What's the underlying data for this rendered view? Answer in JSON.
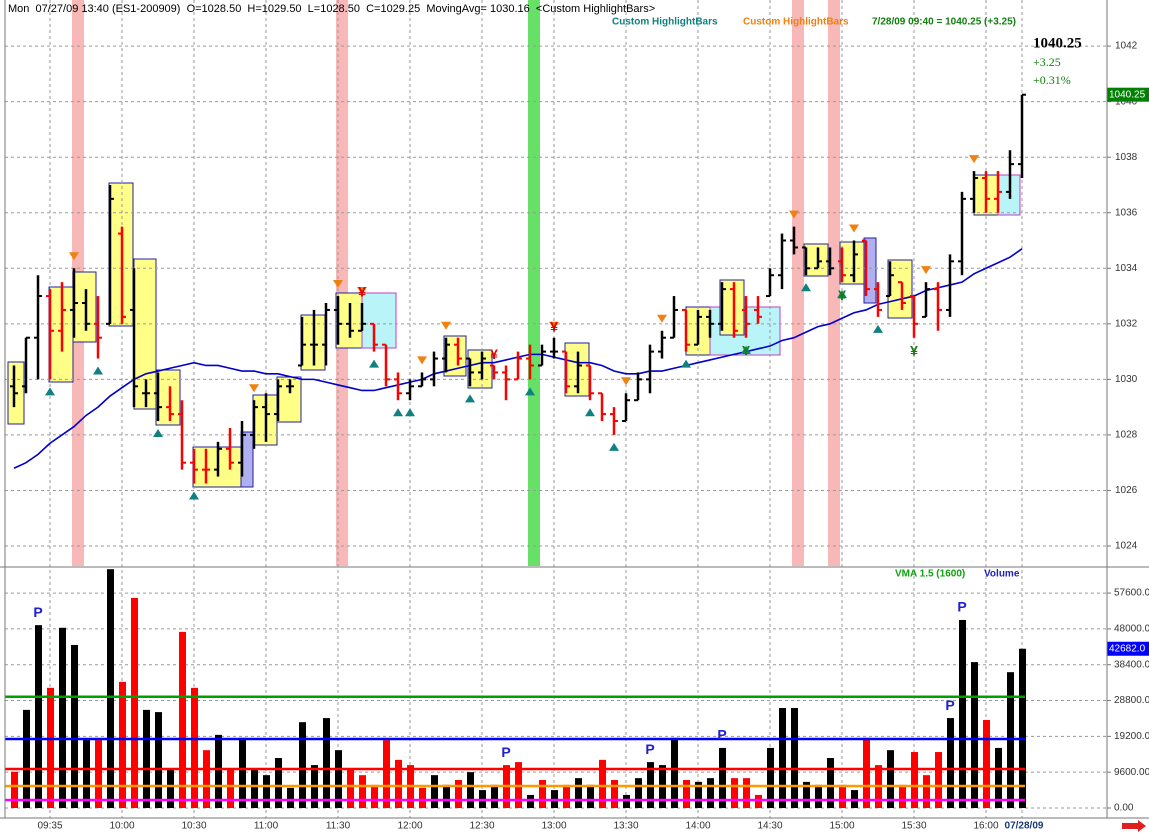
{
  "header": "Mon  07/27/09 13:40 (ES1-200909)  O=1028.50  H=1029.50  L=1028.50  C=1029.25  MovingAvg= 1030.16  <Custom HighlightBars>",
  "indicators": [
    "Custom HighlightBars",
    "Custom HighlightBars",
    "7/28/09 09:40 = 1040.25 (+3.25)"
  ],
  "quote": {
    "change": "+3.25",
    "percent": "+0.31%"
  },
  "chart_data": [
    {
      "type": "ohlc",
      "ylim": [
        1023.28,
        1043.66
      ],
      "yticks": [
        1024,
        1026,
        1028,
        1030,
        1032,
        1034,
        1036,
        1038,
        1040,
        1042
      ],
      "grid": true,
      "last_color": "#008000",
      "open": [
        1029.75,
        1029.75,
        1031.5,
        1033,
        1031.75,
        1032.5,
        1032.75,
        1032,
        1032,
        1035.25,
        1032.5,
        1029.5,
        1029.5,
        1029,
        1028.75,
        1027,
        1026.75,
        1026.75,
        1027.5,
        1027,
        1028,
        1029,
        1028.75,
        1029.75,
        1030.5,
        1031.25,
        1031.25,
        1032.5,
        1032,
        1031.75,
        1032,
        1031.25,
        1030,
        1029.5,
        1029.75,
        1030,
        1030.75,
        1031.25,
        1030.75,
        1030.25,
        1030.5,
        1030.25,
        1030,
        1030.75,
        1030.5,
        1031,
        1031,
        1029.75,
        1030.5,
        1029.5,
        1028.75,
        1028.5,
        1029.25,
        1030,
        1031,
        1031.5,
        1032.5,
        1031.25,
        1032.25,
        1032,
        1033.25,
        1032.5,
        1032.5,
        1033,
        1033.75,
        1035,
        1034.75,
        1034,
        1034.25,
        1034.25,
        1033.75,
        1035,
        1033.25,
        1033,
        1033.5,
        1033,
        1032.25,
        1033.25,
        1032.5,
        1034.25,
        1036.5,
        1037.25,
        1036.5,
        1036.75,
        1037.75
      ],
      "high": [
        1030.5,
        1031.5,
        1033.75,
        1033.25,
        1033.5,
        1034,
        1033.25,
        1033,
        1037,
        1035.5,
        1034,
        1030,
        1030.25,
        1029.75,
        1029.25,
        1027.5,
        1027.5,
        1027.75,
        1028.25,
        1028.5,
        1029.25,
        1029.5,
        1030,
        1030,
        1032.25,
        1032.5,
        1032.75,
        1033,
        1032.75,
        1032.75,
        1032,
        1031.25,
        1030.25,
        1030,
        1030.25,
        1031,
        1031.5,
        1031.5,
        1030.75,
        1031,
        1030.5,
        1030.5,
        1031,
        1031.25,
        1031.25,
        1031.5,
        1031,
        1031,
        1030.5,
        1029.5,
        1029,
        1029.5,
        1030.25,
        1031.25,
        1031.75,
        1033,
        1032.5,
        1032.5,
        1032.5,
        1033.5,
        1033.5,
        1033,
        1033,
        1034,
        1035.25,
        1035.5,
        1034.75,
        1034.75,
        1034.75,
        1034.75,
        1035,
        1035,
        1033.5,
        1034.25,
        1033.5,
        1033,
        1033.5,
        1033.5,
        1034.5,
        1036.75,
        1037.5,
        1037.5,
        1037.5,
        1038.25,
        1040.25
      ],
      "low": [
        1029,
        1029.5,
        1030,
        1030,
        1031,
        1031.5,
        1031.75,
        1030.75,
        1032,
        1032,
        1029,
        1029,
        1028.5,
        1028.5,
        1026.75,
        1026.25,
        1026.25,
        1026.5,
        1026.75,
        1026.5,
        1027.5,
        1027.75,
        1028.5,
        1029.5,
        1030.5,
        1030.5,
        1030.5,
        1031.25,
        1031.5,
        1031.75,
        1031,
        1029.75,
        1029.25,
        1029.25,
        1029.75,
        1029.75,
        1030.25,
        1030.5,
        1029.75,
        1030,
        1030,
        1029.25,
        1030,
        1030,
        1030.5,
        1030.75,
        1029.5,
        1029.5,
        1029.25,
        1028.5,
        1028,
        1028.5,
        1029.25,
        1029.5,
        1030.75,
        1031.5,
        1031,
        1031.25,
        1031.5,
        1031.75,
        1031.5,
        1031.5,
        1032,
        1033,
        1033.25,
        1034.5,
        1033.75,
        1034,
        1033.75,
        1033.5,
        1033.5,
        1033,
        1032.25,
        1033,
        1032.5,
        1031.5,
        1032.25,
        1031.75,
        1032.25,
        1033.75,
        1036,
        1036,
        1036,
        1036.5,
        1037.25
      ],
      "close": [
        1029.5,
        1031.5,
        1033,
        1031.75,
        1032.5,
        1032.75,
        1032,
        1031.5,
        1036.5,
        1032.25,
        1029.75,
        1029.5,
        1029,
        1028.75,
        1027,
        1026.75,
        1026.75,
        1027.5,
        1027,
        1028,
        1029,
        1028.75,
        1029.75,
        1029.75,
        1031.25,
        1031.25,
        1032.5,
        1032,
        1031.75,
        1032,
        1031.25,
        1030,
        1029.5,
        1029.75,
        1030,
        1030.75,
        1031.25,
        1030.75,
        1030.25,
        1030.75,
        1030.25,
        1030,
        1030.75,
        1030.5,
        1031,
        1031,
        1029.75,
        1030.5,
        1029.5,
        1028.75,
        1028.5,
        1029.25,
        1030,
        1031,
        1031.5,
        1032.5,
        1031.25,
        1032.25,
        1032,
        1033.25,
        1031.75,
        1032,
        1032.25,
        1033.75,
        1035,
        1034.75,
        1034,
        1034.25,
        1034,
        1033.75,
        1034.5,
        1033.25,
        1032.5,
        1033.75,
        1032.75,
        1032,
        1033.25,
        1032.5,
        1034.25,
        1036.5,
        1037.25,
        1036.5,
        1036.75,
        1037.75,
        1040.25
      ],
      "colors": [
        "#000",
        "#000",
        "#000",
        "#f00",
        "#f00",
        "#000",
        "#000",
        "#f00",
        "#000",
        "#f00",
        "#000",
        "#000",
        "#000",
        "#f00",
        "#f00",
        "#f00",
        "#f00",
        "#000",
        "#f00",
        "#000",
        "#000",
        "#000",
        "#000",
        "#000",
        "#000",
        "#000",
        "#000",
        "#000",
        "#000",
        "#000",
        "#f00",
        "#f00",
        "#f00",
        "#000",
        "#000",
        "#000",
        "#000",
        "#f00",
        "#000",
        "#000",
        "#f00",
        "#f00",
        "#f00",
        "#f00",
        "#000",
        "#000",
        "#f00",
        "#000",
        "#f00",
        "#f00",
        "#f00",
        "#000",
        "#000",
        "#000",
        "#000",
        "#000",
        "#f00",
        "#000",
        "#000",
        "#000",
        "#f00",
        "#f00",
        "#f00",
        "#000",
        "#000",
        "#000",
        "#000",
        "#000",
        "#000",
        "#f00",
        "#000",
        "#f00",
        "#f00",
        "#000",
        "#f00",
        "#f00",
        "#000",
        "#f00",
        "#000",
        "#000",
        "#000",
        "#f00",
        "#f00",
        "#000",
        "#000"
      ],
      "moving_average": {
        "color": "#0000cc",
        "values": [
          1026.8,
          1027.0,
          1027.3,
          1027.7,
          1028.0,
          1028.3,
          1028.7,
          1029.0,
          1029.4,
          1029.7,
          1030.0,
          1030.2,
          1030.3,
          1030.4,
          1030.5,
          1030.6,
          1030.5,
          1030.5,
          1030.4,
          1030.3,
          1030.3,
          1030.2,
          1030.2,
          1030.1,
          1030.0,
          1030.0,
          1029.9,
          1029.8,
          1029.7,
          1029.6,
          1029.6,
          1029.7,
          1029.8,
          1029.9,
          1030.0,
          1030.2,
          1030.3,
          1030.4,
          1030.5,
          1030.6,
          1030.6,
          1030.7,
          1030.8,
          1030.9,
          1030.9,
          1030.8,
          1030.7,
          1030.6,
          1030.6,
          1030.5,
          1030.3,
          1030.2,
          1030.2,
          1030.3,
          1030.3,
          1030.4,
          1030.5,
          1030.6,
          1030.7,
          1030.8,
          1030.9,
          1031.0,
          1031.1,
          1031.2,
          1031.4,
          1031.5,
          1031.7,
          1031.9,
          1032.0,
          1032.2,
          1032.4,
          1032.5,
          1032.7,
          1032.8,
          1032.9,
          1033.0,
          1033.2,
          1033.3,
          1033.4,
          1033.5,
          1033.8,
          1034.0,
          1034.2,
          1034.4,
          1034.7
        ]
      },
      "up_signals": {
        "color": "#108080",
        "bars": [
          3,
          7,
          12,
          15,
          30,
          32,
          33,
          38,
          43,
          48,
          50,
          56,
          61,
          66,
          69,
          72
        ]
      },
      "down_signals": {
        "color": "#f08010",
        "bars": [
          5,
          20,
          27,
          29,
          34,
          36,
          45,
          51,
          54,
          65,
          70,
          76,
          80
        ]
      },
      "symbols": {
        "label": "¥",
        "sell_color": "#e00000",
        "sell": [
          29,
          40,
          45
        ],
        "buy_color": "#108010",
        "buy": [
          61,
          69,
          75
        ]
      }
    },
    {
      "type": "bar",
      "ylim": [
        -2680,
        64320
      ],
      "grid": true,
      "yticks": [
        {
          "value": 0,
          "label": "0.00"
        },
        {
          "value": 9600,
          "label": "9600.00"
        },
        {
          "value": 19200,
          "label": "19200.00"
        },
        {
          "value": 28800,
          "label": "28800.00"
        },
        {
          "value": 38400,
          "label": "38400.00"
        },
        {
          "value": 48000,
          "label": "48000.00"
        },
        {
          "value": 57600,
          "label": "57600.00"
        }
      ],
      "categories": [
        null,
        null,
        null,
        "09:35",
        null,
        null,
        null,
        null,
        null,
        "10:00",
        null,
        null,
        null,
        null,
        null,
        "10:30",
        null,
        null,
        null,
        null,
        null,
        "11:00",
        null,
        null,
        null,
        null,
        null,
        "11:30",
        null,
        null,
        null,
        null,
        null,
        "12:00",
        null,
        null,
        null,
        null,
        null,
        "12:30",
        null,
        null,
        null,
        null,
        null,
        "13:00",
        null,
        null,
        null,
        null,
        null,
        "13:30",
        null,
        null,
        null,
        null,
        null,
        "14:00",
        null,
        null,
        null,
        null,
        null,
        "14:30",
        null,
        null,
        null,
        null,
        null,
        "15:00",
        null,
        null,
        null,
        null,
        null,
        "15:30",
        null,
        null,
        null,
        null,
        null,
        "16:00",
        null,
        null,
        "07/28/09"
      ],
      "values": [
        9700,
        26300,
        49000,
        32200,
        48300,
        43700,
        18200,
        18200,
        64000,
        33800,
        56300,
        26300,
        25700,
        10200,
        47200,
        32200,
        15500,
        19600,
        10200,
        18800,
        10200,
        8800,
        13400,
        5400,
        23000,
        11500,
        24100,
        15500,
        10700,
        8800,
        6200,
        18200,
        12900,
        11500,
        5400,
        8800,
        6200,
        7500,
        9600,
        4800,
        6200,
        11500,
        12300,
        3500,
        7500,
        4800,
        6200,
        8000,
        6200,
        12900,
        7500,
        3500,
        8000,
        12300,
        11500,
        18800,
        7500,
        7000,
        8000,
        16100,
        8000,
        8000,
        3500,
        16100,
        26800,
        26800,
        7000,
        6200,
        13400,
        6200,
        4800,
        18800,
        11500,
        15500,
        6200,
        15000,
        8800,
        15000,
        24100,
        50400,
        39100,
        23600,
        16100,
        36400,
        42682
      ],
      "value_labels": [
        null,
        null,
        null,
        null,
        null,
        null,
        null,
        null,
        null,
        null,
        null,
        null,
        null,
        null,
        null,
        null,
        null,
        null,
        null,
        null,
        null,
        null,
        null,
        null,
        null,
        null,
        null,
        null,
        null,
        null,
        null,
        null,
        null,
        null,
        null,
        null,
        null,
        null,
        null,
        null,
        null,
        null,
        null,
        null,
        null,
        null,
        null,
        null,
        null,
        null,
        null,
        null,
        null,
        null,
        null,
        null,
        null,
        null,
        null,
        null,
        null,
        null,
        null,
        null,
        null,
        null,
        null,
        null,
        null,
        null,
        null,
        null,
        null,
        null,
        null,
        null,
        null,
        null,
        null,
        null,
        null,
        null,
        null,
        null,
        "42682.0"
      ],
      "colors": [
        "#f00",
        "#000",
        "#000",
        "#f00",
        "#000",
        "#000",
        "#000",
        "#f00",
        "#000",
        "#f00",
        "#f00",
        "#000",
        "#000",
        "#000",
        "#f00",
        "#f00",
        "#f00",
        "#000",
        "#f00",
        "#000",
        "#000",
        "#000",
        "#000",
        "#000",
        "#000",
        "#000",
        "#000",
        "#000",
        "#f00",
        "#f00",
        "#f00",
        "#f00",
        "#f00",
        "#f00",
        "#f00",
        "#000",
        "#000",
        "#f00",
        "#000",
        "#000",
        "#000",
        "#f00",
        "#f00",
        "#000",
        "#f00",
        "#000",
        "#f00",
        "#000",
        "#000",
        "#f00",
        "#f00",
        "#000",
        "#000",
        "#000",
        "#000",
        "#000",
        "#f00",
        "#000",
        "#000",
        "#000",
        "#f00",
        "#f00",
        "#f00",
        "#000",
        "#000",
        "#000",
        "#000",
        "#000",
        "#000",
        "#f00",
        "#000",
        "#f00",
        "#f00",
        "#000",
        "#f00",
        "#f00",
        "#f00",
        "#f00",
        "#000",
        "#000",
        "#000",
        "#f00",
        "#000",
        "#000",
        "#000"
      ],
      "last_color": "#0000ff",
      "levels": [
        {
          "value": 29800,
          "color": "#00a000"
        },
        {
          "value": 18500,
          "color": "#0000ff"
        },
        {
          "value": 10450,
          "color": "#ff0000"
        },
        {
          "value": 5900,
          "color": "#ff9900"
        },
        {
          "value": 2150,
          "color": "#ff00ff"
        }
      ],
      "legend": [
        {
          "name": "VMA 1.5 (1600)",
          "color": "#10a010"
        },
        {
          "name": "Volume",
          "color": "#2020c0"
        }
      ],
      "p_label": "P",
      "p_markers": [
        2,
        41,
        53,
        59,
        78,
        79
      ]
    }
  ]
}
